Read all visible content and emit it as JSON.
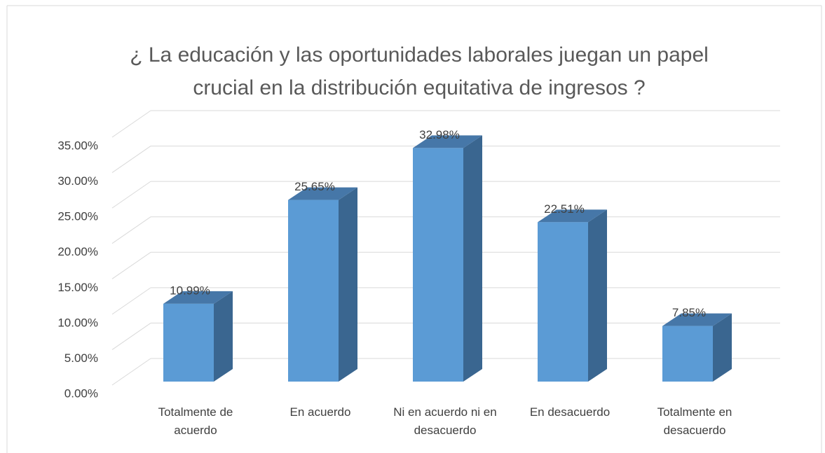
{
  "chart_data": {
    "type": "bar3d",
    "title": [
      "¿ La educación y las oportunidades laborales juegan un papel",
      "crucial en la distribución equitativa de ingresos    ?"
    ],
    "categories": [
      "Totalmente de acuerdo",
      "En acuerdo",
      "Ni en acuerdo ni en desacuerdo",
      "En desacuerdo",
      "Totalmente en desacuerdo"
    ],
    "values": [
      10.99,
      25.65,
      32.98,
      22.51,
      7.85
    ],
    "value_labels": [
      "10.99%",
      "25.65%",
      "32.98%",
      "22.51%",
      "7.85%"
    ],
    "color": "#5b9bd5",
    "ylim": [
      0,
      35
    ],
    "yticks": [
      {
        "value": 0,
        "label": "0.00%"
      },
      {
        "value": 5,
        "label": "5.00%"
      },
      {
        "value": 10,
        "label": "10.00%"
      },
      {
        "value": 15,
        "label": "15.00%"
      },
      {
        "value": 20,
        "label": "20.00%"
      },
      {
        "value": 25,
        "label": "25.00%"
      },
      {
        "value": 30,
        "label": "30.00%"
      },
      {
        "value": 35,
        "label": "35.00%"
      }
    ],
    "grid": true
  }
}
